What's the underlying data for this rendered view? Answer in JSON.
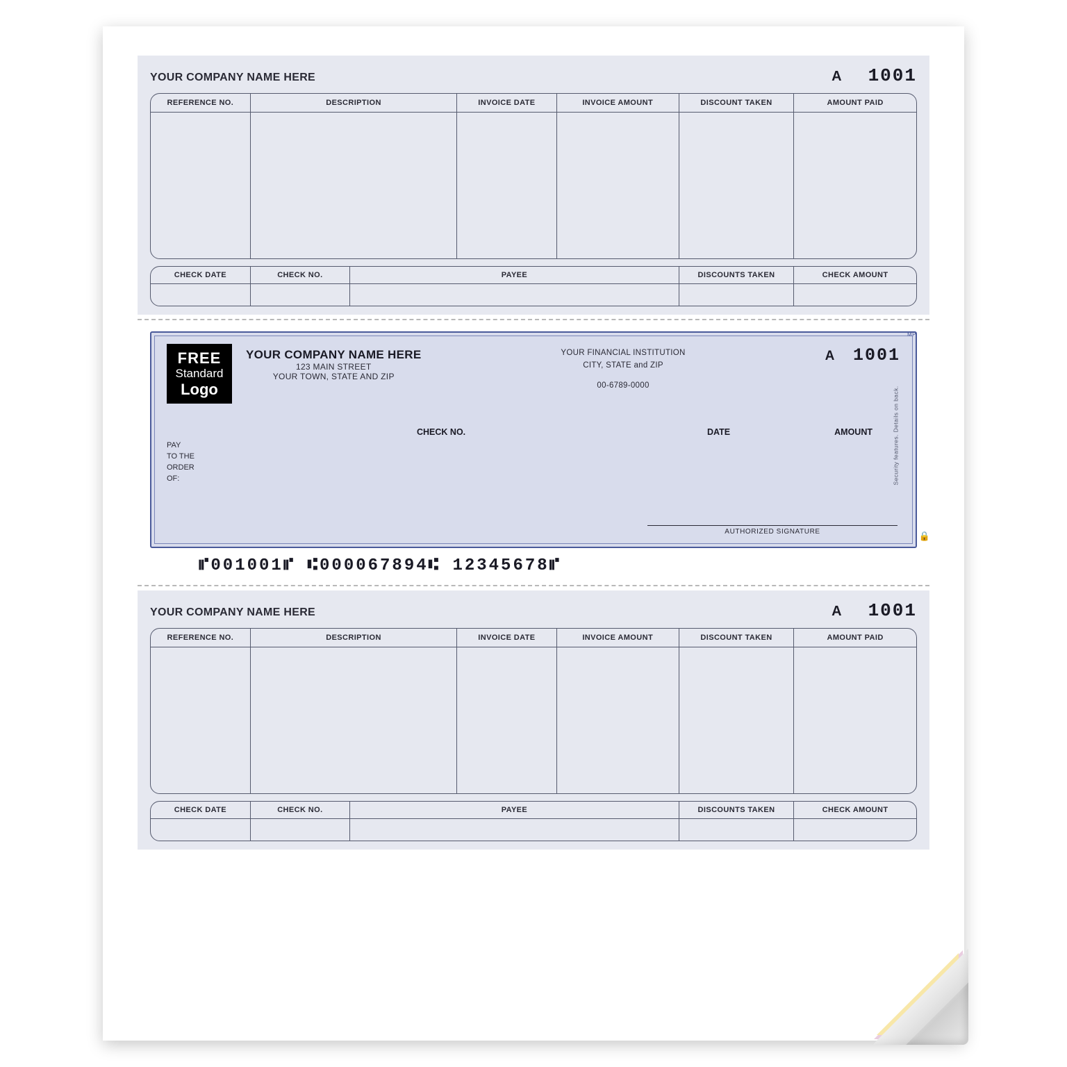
{
  "stub": {
    "company_name": "YOUR COMPANY NAME HERE",
    "check_letter": "A",
    "check_number": "1001",
    "detail_columns": [
      "REFERENCE NO.",
      "DESCRIPTION",
      "INVOICE DATE",
      "INVOICE AMOUNT",
      "DISCOUNT TAKEN",
      "AMOUNT PAID"
    ],
    "detail_widths_pct": [
      13,
      27,
      13,
      16,
      15,
      16
    ],
    "summary_columns": [
      "CHECK DATE",
      "CHECK NO.",
      "PAYEE",
      "DISCOUNTS TAKEN",
      "CHECK AMOUNT"
    ],
    "summary_widths_pct": [
      13,
      13,
      43,
      15,
      16
    ]
  },
  "check": {
    "logo": {
      "line1": "FREE",
      "line2": "Standard",
      "line3": "Logo"
    },
    "company": {
      "name": "YOUR COMPANY NAME HERE",
      "addr1": "123 MAIN STREET",
      "addr2": "YOUR TOWN, STATE AND ZIP"
    },
    "bank": {
      "name": "YOUR FINANCIAL INSTITUTION",
      "city": "CITY, STATE and ZIP",
      "routing_display": "00-6789-0000"
    },
    "check_letter": "A",
    "check_number": "1001",
    "labels": {
      "check_no": "CHECK NO.",
      "date": "DATE",
      "amount": "AMOUNT"
    },
    "pay_order": {
      "l1": "PAY",
      "l2": "TO THE",
      "l3": "ORDER",
      "l4": "OF:"
    },
    "signature_label": "AUTHORIZED SIGNATURE",
    "mp_mark": "MP",
    "security_text": "Security features. Details on back.",
    "micr": "⑈001001⑈ ⑆000067894⑆ 12345678⑈"
  },
  "colors": {
    "stub_bg": "#e6e8f0",
    "check_bg": "#d8dcec",
    "check_border": "#4a5a9a",
    "rule": "#555a6e",
    "text": "#2a2a35"
  }
}
